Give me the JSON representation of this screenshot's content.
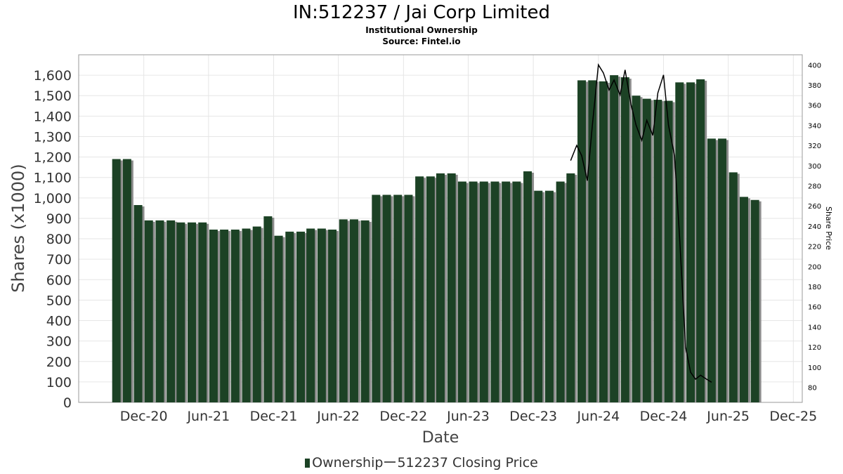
{
  "header": {
    "title": "IN:512237 / Jai Corp Limited",
    "subtitle": "Institutional Ownership",
    "source": "Source: Fintel.io"
  },
  "legend": {
    "ownership_label": "Ownership",
    "price_label": "512237 Closing Price"
  },
  "colors": {
    "bar": "#1c4225",
    "bar_shadow": "#8c8c8c",
    "price_line": "#000000",
    "grid": "#e6e6e6"
  },
  "chart_data": {
    "type": "bar",
    "title": "IN:512237 / Jai Corp Limited",
    "xlabel": "Date",
    "ylabel": "Shares (x1000)",
    "y2label": "Share Price",
    "ylim": [
      0,
      1700
    ],
    "y2lim": [
      65,
      410
    ],
    "grid": true,
    "legend_position": "bottom",
    "x_ticks": [
      "Dec-20",
      "Jun-21",
      "Dec-21",
      "Jun-22",
      "Dec-22",
      "Jun-23",
      "Dec-23",
      "Jun-24",
      "Dec-24",
      "Jun-25",
      "Dec-25"
    ],
    "y_ticks": [
      "0",
      "100",
      "200",
      "300",
      "400",
      "500",
      "600",
      "700",
      "800",
      "900",
      "1,000",
      "1,100",
      "1,200",
      "1,300",
      "1,400",
      "1,500",
      "1,600"
    ],
    "y2_ticks": [
      "80",
      "100",
      "120",
      "140",
      "160",
      "180",
      "200",
      "220",
      "240",
      "260",
      "280",
      "300",
      "320",
      "340",
      "360",
      "380",
      "400"
    ],
    "series": [
      {
        "name": "Ownership",
        "axis": "left",
        "dates": [
          "2020-09-15",
          "2020-10-15",
          "2020-11-15",
          "2020-12-15",
          "2021-01-15",
          "2021-02-15",
          "2021-03-15",
          "2021-04-15",
          "2021-05-15",
          "2021-06-15",
          "2021-07-15",
          "2021-08-15",
          "2021-09-15",
          "2021-10-15",
          "2021-11-15",
          "2021-12-15",
          "2022-01-15",
          "2022-02-15",
          "2022-03-15",
          "2022-04-15",
          "2022-05-15",
          "2022-06-15",
          "2022-07-15",
          "2022-08-15",
          "2022-09-15",
          "2022-10-15",
          "2022-11-15",
          "2022-12-15",
          "2023-01-15",
          "2023-02-15",
          "2023-03-15",
          "2023-04-15",
          "2023-05-15",
          "2023-06-15",
          "2023-07-15",
          "2023-08-15",
          "2023-09-15",
          "2023-10-15",
          "2023-11-15",
          "2023-12-15",
          "2024-01-15",
          "2024-02-15",
          "2024-03-15",
          "2024-04-15",
          "2024-05-15",
          "2024-06-15",
          "2024-07-15",
          "2024-08-15",
          "2024-09-15",
          "2024-10-15",
          "2024-11-15",
          "2024-12-15",
          "2025-01-15",
          "2025-02-15",
          "2025-03-15",
          "2025-04-15",
          "2025-05-15",
          "2025-06-15",
          "2025-07-15",
          "2025-08-15",
          "2025-09-15"
        ],
        "values": [
          1190,
          1190,
          965,
          890,
          890,
          890,
          880,
          880,
          880,
          845,
          845,
          845,
          850,
          860,
          910,
          815,
          835,
          835,
          850,
          850,
          845,
          895,
          895,
          890,
          1015,
          1015,
          1015,
          1015,
          1105,
          1105,
          1120,
          1120,
          1080,
          1080,
          1080,
          1080,
          1080,
          1080,
          1130,
          1035,
          1035,
          1080,
          1120,
          1575,
          1575,
          1570,
          1600,
          1590,
          1500,
          1485,
          1480,
          1475,
          1565,
          1565,
          1580,
          1290,
          1290,
          1125,
          1005,
          990,
          0
        ]
      },
      {
        "name": "512237 Closing Price",
        "axis": "right",
        "type": "line",
        "dates": [
          "2024-03-15",
          "2024-04-01",
          "2024-04-15",
          "2024-05-01",
          "2024-05-15",
          "2024-06-01",
          "2024-06-15",
          "2024-07-01",
          "2024-07-15",
          "2024-08-01",
          "2024-08-15",
          "2024-09-01",
          "2024-09-15",
          "2024-10-01",
          "2024-10-15",
          "2024-11-01",
          "2024-11-15",
          "2024-12-01",
          "2024-12-15",
          "2025-01-01",
          "2025-01-15",
          "2025-02-01",
          "2025-02-15",
          "2025-03-01",
          "2025-03-15",
          "2025-04-01",
          "2025-04-15"
        ],
        "values": [
          305,
          320,
          310,
          285,
          340,
          400,
          392,
          375,
          385,
          370,
          395,
          360,
          340,
          325,
          345,
          330,
          372,
          390,
          340,
          310,
          230,
          120,
          95,
          88,
          92,
          88,
          85
        ]
      }
    ]
  }
}
